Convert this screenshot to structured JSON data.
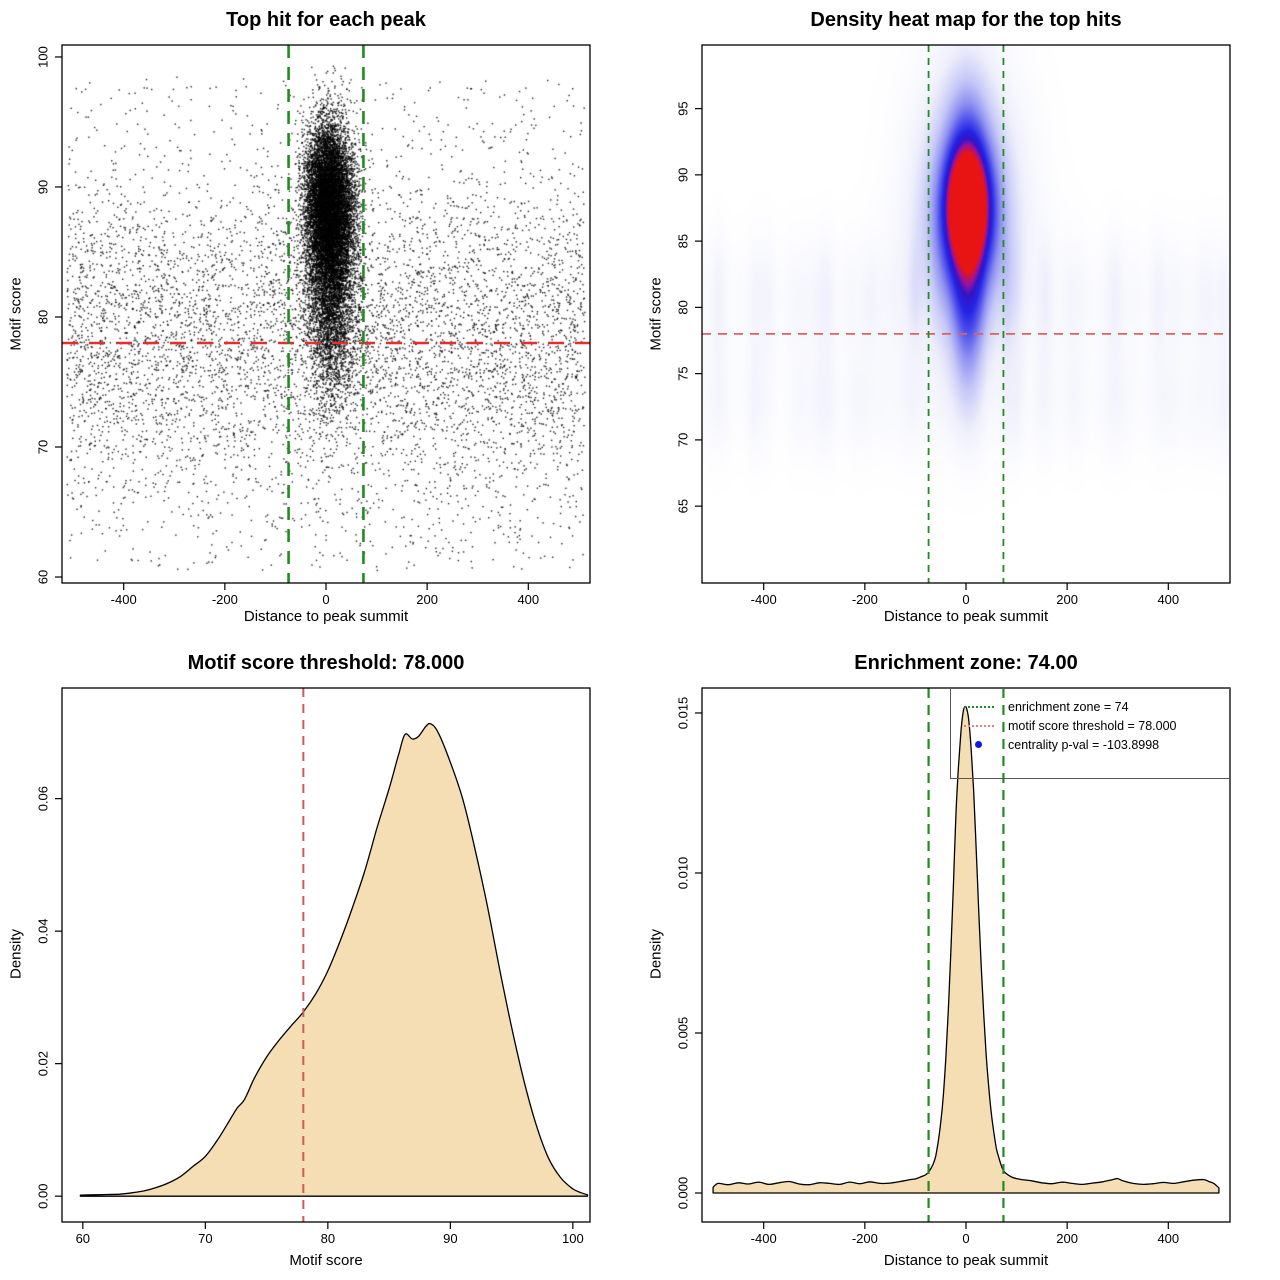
{
  "background": "#FFFFFF",
  "colors": {
    "forest_green": "#228B22",
    "scatter_red_line": "#E0312D",
    "heatmap_red_line": "#E06060",
    "indian_red": "#CD5C5C",
    "wheat_fill": "#F5DEB3",
    "curve_stroke": "#000000",
    "blue_point": "#1414E6"
  },
  "chart_data": [
    {
      "type": "scatter",
      "title": "Top hit for each peak",
      "xlabel": "Distance to peak summit",
      "ylabel": "Motif score",
      "xlim": [
        -522,
        522
      ],
      "ylim": [
        59.54,
        100.92
      ],
      "xticks": {
        "values": [
          -400,
          -200,
          0,
          200,
          400
        ],
        "labels": [
          "-400",
          "-200",
          "0",
          "200",
          "400"
        ]
      },
      "yticks": {
        "values": [
          60,
          70,
          80,
          90,
          100
        ],
        "labels": [
          "60",
          "70",
          "80",
          "90",
          "100"
        ]
      },
      "hlines": [
        {
          "y": 78,
          "color": "#E0312D",
          "width": 2.6,
          "dash": "16,11"
        }
      ],
      "vlines": [
        {
          "x": -74,
          "color": "#228B22",
          "width": 2.6,
          "dash": "13,9"
        },
        {
          "x": 74,
          "color": "#228B22",
          "width": 2.6,
          "dash": "13,9"
        }
      ],
      "points": {
        "color": "#000000",
        "size": 1.4,
        "alpha": 0.88,
        "seed": 1234,
        "cluster": {
          "n": 14000,
          "x_center": 8,
          "x_sd": 24,
          "x_tilt": -0.4,
          "y_mix": [
            {
              "w": 0.7,
              "mu": 88.6,
              "sd": 3.1
            },
            {
              "w": 0.3,
              "mu": 82.3,
              "sd": 4.2
            }
          ],
          "y_min": 70.5,
          "y_max": 99.4
        },
        "background": {
          "n": 6500,
          "x_range": [
            -512,
            512
          ],
          "y_mix": [
            {
              "w": 0.5,
              "mu": 80.0,
              "sd": 5.4
            },
            {
              "w": 0.3,
              "mu": 74.5,
              "sd": 5.8
            },
            {
              "w": 0.2,
              "uniform": [
                60.5,
                98.5
              ]
            }
          ],
          "y_clip": [
            60.3,
            99.0
          ]
        }
      }
    },
    {
      "type": "heatmap",
      "title": "Density heat map for the top hits",
      "xlabel": "Distance to peak summit",
      "ylabel": "Motif score",
      "xlim": [
        -522,
        522
      ],
      "ylim": [
        59.2,
        99.8
      ],
      "xticks": {
        "values": [
          -400,
          -200,
          0,
          200,
          400
        ],
        "labels": [
          "-400",
          "-200",
          "0",
          "200",
          "400"
        ]
      },
      "yticks": {
        "values": [
          65,
          70,
          75,
          80,
          85,
          90,
          95
        ],
        "labels": [
          "65",
          "70",
          "75",
          "80",
          "85",
          "90",
          "95"
        ]
      },
      "hlines": [
        {
          "y": 78,
          "color": "#E06060",
          "width": 1.8,
          "dash": "9,7"
        }
      ],
      "vlines": [
        {
          "x": -74,
          "color": "#228B22",
          "width": 1.8,
          "dash": "7,6"
        },
        {
          "x": 74,
          "color": "#228B22",
          "width": 1.8,
          "dash": "7,6"
        }
      ],
      "density": {
        "seed": 77,
        "gaussians": [
          {
            "cx": 2,
            "cy": 87.7,
            "sx": 24.5,
            "sy": 2.7,
            "w": 0.78
          },
          {
            "cx": 2,
            "cy": 87.3,
            "sx": 47.0,
            "sy": 4.5,
            "w": 0.6
          },
          {
            "cx": 2,
            "cy": 87.0,
            "sx": 71.0,
            "sy": 7.2,
            "w": 0.3
          },
          {
            "cx": 2,
            "cy": 78.5,
            "sx": 23.5,
            "sy": 4.2,
            "w": 0.3
          },
          {
            "cx": 2,
            "cy": 94.5,
            "sx": 30.0,
            "sy": 3.5,
            "w": 0.18
          }
        ],
        "band": {
          "base": 0.13,
          "lobes": [
            {
              "y": 80.7,
              "sigma": 3.2,
              "w": 1.0
            },
            {
              "y": 72.9,
              "sigma": 2.9,
              "w": 0.8
            }
          ]
        },
        "ramp": [
          [
            0.0,
            "#FFFFFF"
          ],
          [
            0.13,
            "#EEEFFB"
          ],
          [
            0.3,
            "#C4C6F7"
          ],
          [
            0.45,
            "#8E91F0"
          ],
          [
            0.58,
            "#5254EC"
          ],
          [
            0.7,
            "#2424E4"
          ],
          [
            0.8,
            "#3214C8"
          ],
          [
            0.88,
            "#9612A0"
          ],
          [
            1.0,
            "#E81414"
          ]
        ]
      }
    },
    {
      "type": "area",
      "title": "Motif score threshold: 78.000",
      "xlabel": "Motif score",
      "ylabel": "Density",
      "xlim": [
        58.3,
        101.4
      ],
      "ylim": [
        -0.0039,
        0.0767
      ],
      "xticks": {
        "values": [
          60,
          70,
          80,
          90,
          100
        ],
        "labels": [
          "60",
          "70",
          "80",
          "90",
          "100"
        ]
      },
      "yticks": {
        "values": [
          0,
          0.02,
          0.04,
          0.06
        ],
        "labels": [
          "0.00",
          "0.02",
          "0.04",
          "0.06"
        ]
      },
      "vlines": [
        {
          "x": 78,
          "color": "#CD5C5C",
          "width": 2.0,
          "dash": "9,7"
        }
      ],
      "fill": "#F5DEB3",
      "stroke": "#000000",
      "curve": [
        [
          59.8,
          0.00015
        ],
        [
          61,
          0.0002
        ],
        [
          62,
          0.00025
        ],
        [
          63,
          0.0003
        ],
        [
          64,
          0.0005
        ],
        [
          65,
          0.0008
        ],
        [
          66,
          0.0013
        ],
        [
          67,
          0.002
        ],
        [
          68,
          0.003
        ],
        [
          69,
          0.0045
        ],
        [
          70,
          0.006
        ],
        [
          71,
          0.0085
        ],
        [
          72,
          0.0115
        ],
        [
          72.6,
          0.0133
        ],
        [
          73.2,
          0.0146
        ],
        [
          74,
          0.0178
        ],
        [
          75,
          0.021
        ],
        [
          76,
          0.0235
        ],
        [
          77,
          0.0257
        ],
        [
          78,
          0.0278
        ],
        [
          79,
          0.0305
        ],
        [
          80,
          0.034
        ],
        [
          81,
          0.0385
        ],
        [
          82,
          0.0435
        ],
        [
          83,
          0.049
        ],
        [
          84,
          0.0555
        ],
        [
          85,
          0.0615
        ],
        [
          85.8,
          0.0668
        ],
        [
          86.3,
          0.0697
        ],
        [
          86.9,
          0.069
        ],
        [
          87.4,
          0.0694
        ],
        [
          88,
          0.0709
        ],
        [
          88.4,
          0.0713
        ],
        [
          89,
          0.07
        ],
        [
          90,
          0.0655
        ],
        [
          91,
          0.06
        ],
        [
          92,
          0.0525
        ],
        [
          93,
          0.044
        ],
        [
          94,
          0.0345
        ],
        [
          95,
          0.0255
        ],
        [
          96,
          0.0175
        ],
        [
          97,
          0.0108
        ],
        [
          98,
          0.0058
        ],
        [
          99,
          0.0028
        ],
        [
          100,
          0.0011
        ],
        [
          100.7,
          0.0005
        ],
        [
          101.2,
          0.0002
        ]
      ]
    },
    {
      "type": "area",
      "title": "Enrichment zone: 74.00",
      "xlabel": "Distance to peak summit",
      "ylabel": "Density",
      "xlim": [
        -522,
        522
      ],
      "ylim": [
        -0.000906,
        0.01578
      ],
      "xticks": {
        "values": [
          -400,
          -200,
          0,
          200,
          400
        ],
        "labels": [
          "-400",
          "-200",
          "0",
          "200",
          "400"
        ]
      },
      "yticks": {
        "values": [
          0,
          0.005,
          0.01,
          0.015
        ],
        "labels": [
          "0.000",
          "0.005",
          "0.010",
          "0.015"
        ]
      },
      "vlines": [
        {
          "x": -74,
          "color": "#228B22",
          "width": 2.2,
          "dash": "10,7"
        },
        {
          "x": 74,
          "color": "#228B22",
          "width": 2.2,
          "dash": "10,7"
        }
      ],
      "fill": "#F5DEB3",
      "stroke": "#000000",
      "curve": [
        [
          -500,
          0.00018
        ],
        [
          -490,
          0.0003
        ],
        [
          -470,
          0.00026
        ],
        [
          -450,
          0.00032
        ],
        [
          -430,
          0.00028
        ],
        [
          -410,
          0.00034
        ],
        [
          -390,
          0.00027
        ],
        [
          -370,
          0.00032
        ],
        [
          -350,
          0.00036
        ],
        [
          -330,
          0.00028
        ],
        [
          -310,
          0.00026
        ],
        [
          -290,
          0.00032
        ],
        [
          -270,
          0.0003
        ],
        [
          -250,
          0.00027
        ],
        [
          -230,
          0.00034
        ],
        [
          -210,
          0.00029
        ],
        [
          -190,
          0.00035
        ],
        [
          -170,
          0.0003
        ],
        [
          -150,
          0.00031
        ],
        [
          -130,
          0.00036
        ],
        [
          -110,
          0.00042
        ],
        [
          -100,
          0.00044
        ],
        [
          -90,
          0.0005
        ],
        [
          -80,
          0.00057
        ],
        [
          -74,
          0.00065
        ],
        [
          -70,
          0.00075
        ],
        [
          -65,
          0.0009
        ],
        [
          -60,
          0.00115
        ],
        [
          -55,
          0.0016
        ],
        [
          -50,
          0.0022
        ],
        [
          -45,
          0.003
        ],
        [
          -40,
          0.0042
        ],
        [
          -35,
          0.0057
        ],
        [
          -30,
          0.0075
        ],
        [
          -25,
          0.0096
        ],
        [
          -20,
          0.0118
        ],
        [
          -15,
          0.0133
        ],
        [
          -10,
          0.0144
        ],
        [
          -6,
          0.015
        ],
        [
          -2,
          0.0152
        ],
        [
          2,
          0.0151
        ],
        [
          6,
          0.0147
        ],
        [
          10,
          0.0139
        ],
        [
          15,
          0.0126
        ],
        [
          20,
          0.0108
        ],
        [
          25,
          0.0089
        ],
        [
          30,
          0.0071
        ],
        [
          35,
          0.0056
        ],
        [
          40,
          0.0043
        ],
        [
          45,
          0.0033
        ],
        [
          50,
          0.0025
        ],
        [
          55,
          0.0019
        ],
        [
          60,
          0.0014
        ],
        [
          65,
          0.0011
        ],
        [
          70,
          0.00085
        ],
        [
          74,
          0.0007
        ],
        [
          80,
          0.0006
        ],
        [
          90,
          0.0005
        ],
        [
          100,
          0.00045
        ],
        [
          110,
          0.00042
        ],
        [
          130,
          0.00038
        ],
        [
          150,
          0.00032
        ],
        [
          170,
          0.00029
        ],
        [
          190,
          0.00034
        ],
        [
          210,
          0.0003
        ],
        [
          230,
          0.00027
        ],
        [
          250,
          0.00031
        ],
        [
          270,
          0.00035
        ],
        [
          290,
          0.00042
        ],
        [
          300,
          0.00045
        ],
        [
          310,
          0.00038
        ],
        [
          330,
          0.0003
        ],
        [
          350,
          0.00027
        ],
        [
          370,
          0.00029
        ],
        [
          390,
          0.00033
        ],
        [
          410,
          0.0003
        ],
        [
          430,
          0.00035
        ],
        [
          450,
          0.0004
        ],
        [
          470,
          0.00042
        ],
        [
          480,
          0.00036
        ],
        [
          490,
          0.0003
        ],
        [
          500,
          0.00016
        ]
      ],
      "legend": {
        "items": [
          {
            "sample": "dotted",
            "color": "#228B22",
            "label": "enrichment zone = 74"
          },
          {
            "sample": "dotted",
            "color": "#E8807E",
            "label": "motif score threshold = 78.000"
          },
          {
            "sample": "point",
            "color": "#1414E6",
            "label": "centrality p-val = -103.8998"
          }
        ]
      }
    }
  ]
}
